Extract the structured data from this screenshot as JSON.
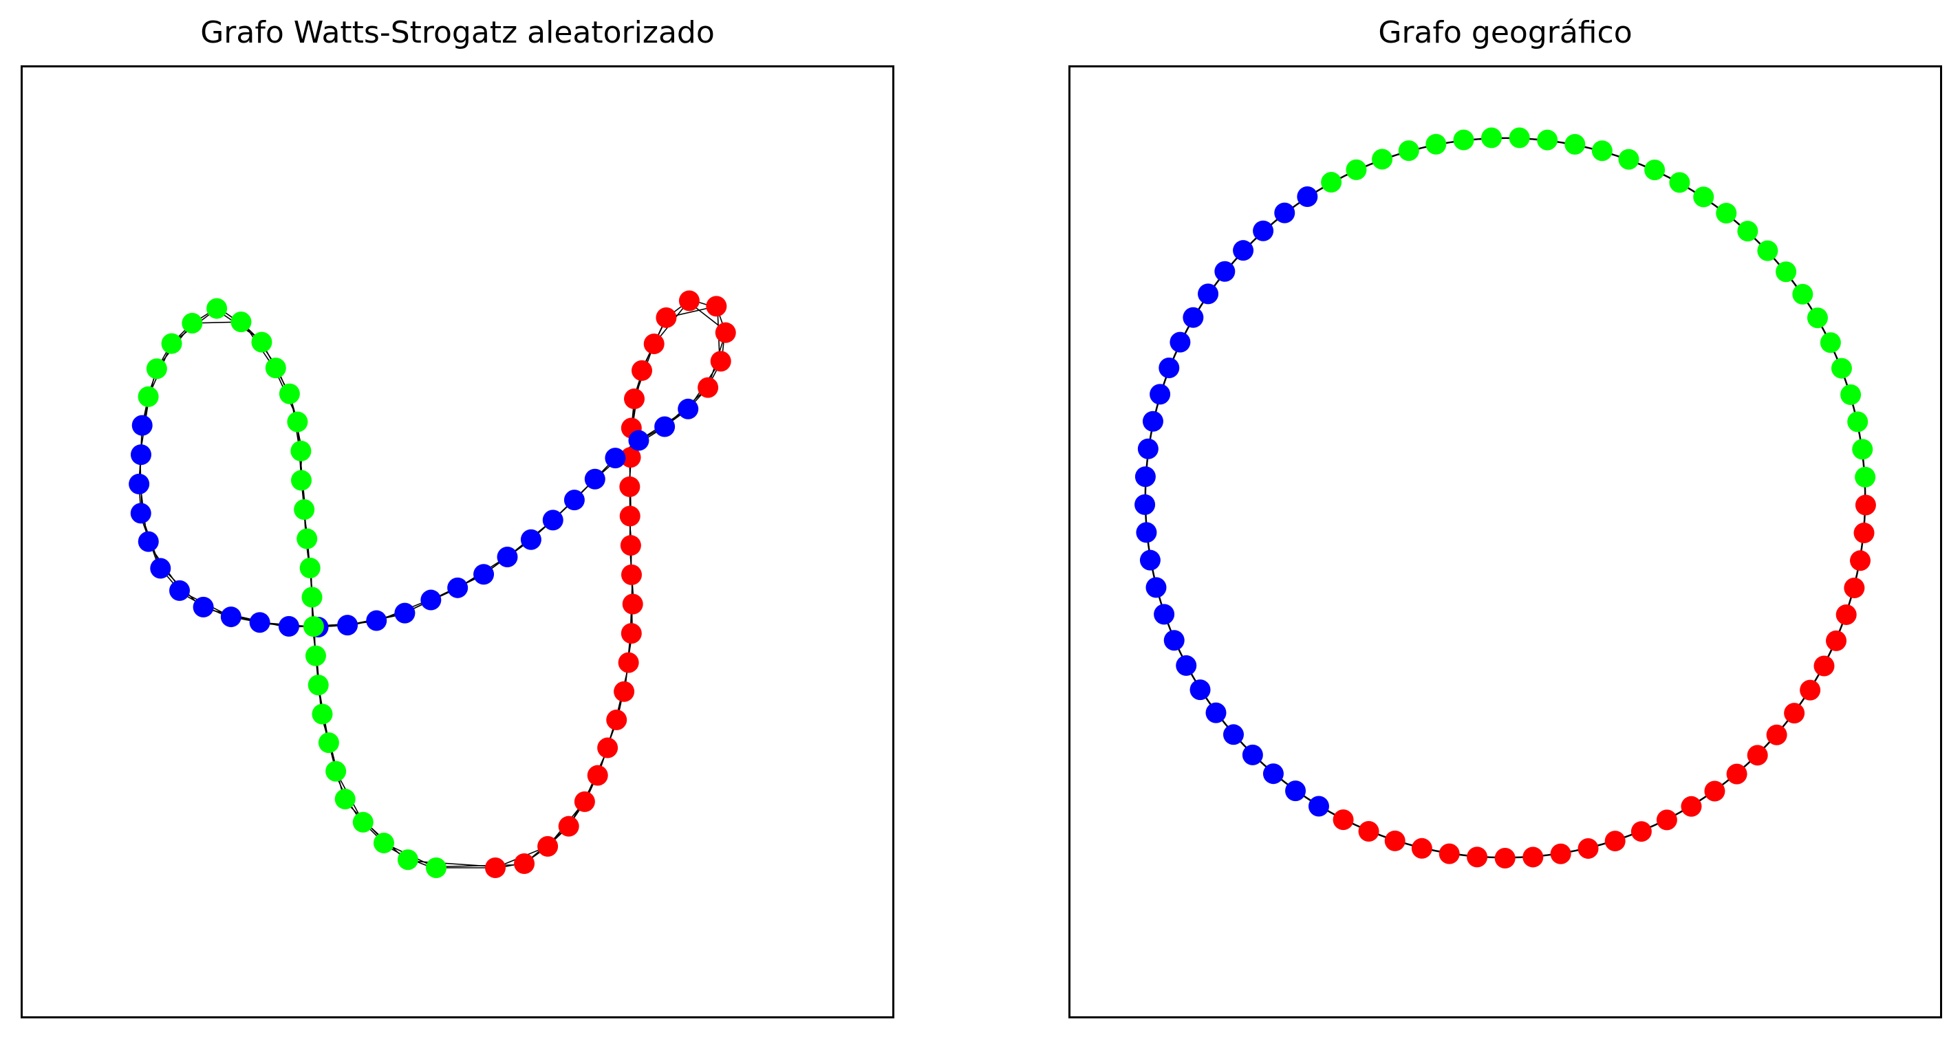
{
  "figure": {
    "left_title": "Grafo Watts-Strogatz aleatorizado",
    "right_title": "Grafo geográfico"
  },
  "graph": {
    "node_count": 81,
    "edge_color": "#000000",
    "groups": [
      {
        "color": "#ff0000",
        "node_count": 27
      },
      {
        "color": "#0000ff",
        "node_count": 27
      },
      {
        "color": "#00ff00",
        "node_count": 27
      }
    ]
  }
}
